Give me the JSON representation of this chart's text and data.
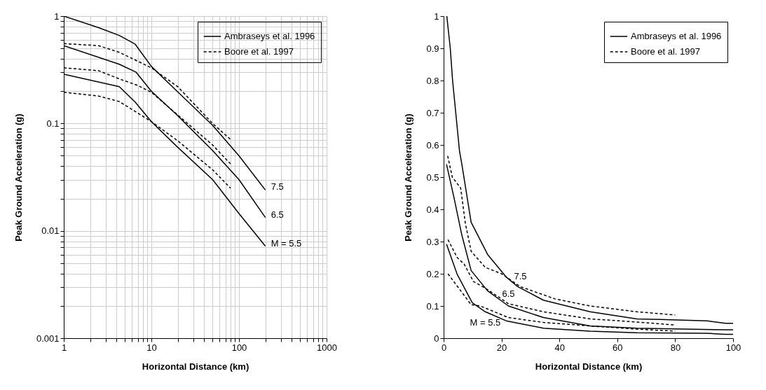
{
  "chart_data": [
    {
      "type": "line",
      "xlabel": "Horizontal Distance (km)",
      "ylabel": "Peak Ground Acceleration (g)",
      "log": "xy",
      "grid": true,
      "legend": "top right",
      "xlim": [
        1,
        1000
      ],
      "ylim": [
        0.001,
        1
      ],
      "xticks": [
        1,
        {
          "value": 2,
          "label": null
        },
        {
          "value": 3,
          "label": null
        },
        {
          "value": 4,
          "label": null
        },
        {
          "value": 5,
          "label": null
        },
        {
          "value": 6,
          "label": null
        },
        {
          "value": 7,
          "label": null
        },
        {
          "value": 8,
          "label": null
        },
        {
          "value": 9,
          "label": null
        },
        10,
        {
          "value": 20,
          "label": null
        },
        {
          "value": 30,
          "label": null
        },
        {
          "value": 40,
          "label": null
        },
        {
          "value": 50,
          "label": null
        },
        {
          "value": 60,
          "label": null
        },
        {
          "value": 70,
          "label": null
        },
        {
          "value": 80,
          "label": null
        },
        {
          "value": 90,
          "label": null
        },
        100,
        {
          "value": 200,
          "label": null
        },
        {
          "value": 300,
          "label": null
        },
        {
          "value": 400,
          "label": null
        },
        {
          "value": 500,
          "label": null
        },
        {
          "value": 600,
          "label": null
        },
        {
          "value": 700,
          "label": null
        },
        {
          "value": 800,
          "label": null
        },
        {
          "value": 900,
          "label": null
        },
        1000
      ],
      "yticks": [
        0.001,
        {
          "value": 0.002,
          "label": null
        },
        {
          "value": 0.003,
          "label": null
        },
        {
          "value": 0.004,
          "label": null
        },
        {
          "value": 0.005,
          "label": null
        },
        {
          "value": 0.006,
          "label": null
        },
        {
          "value": 0.007,
          "label": null
        },
        {
          "value": 0.008,
          "label": null
        },
        {
          "value": 0.009,
          "label": null
        },
        0.01,
        {
          "value": 0.02,
          "label": null
        },
        {
          "value": 0.03,
          "label": null
        },
        {
          "value": 0.04,
          "label": null
        },
        {
          "value": 0.05,
          "label": null
        },
        {
          "value": 0.06,
          "label": null
        },
        {
          "value": 0.07,
          "label": null
        },
        {
          "value": 0.08,
          "label": null
        },
        {
          "value": 0.09,
          "label": null
        },
        0.1,
        {
          "value": 0.2,
          "label": null
        },
        {
          "value": 0.3,
          "label": null
        },
        {
          "value": 0.4,
          "label": null
        },
        {
          "value": 0.5,
          "label": null
        },
        {
          "value": 0.6,
          "label": null
        },
        {
          "value": 0.7,
          "label": null
        },
        {
          "value": 0.8,
          "label": null
        },
        {
          "value": 0.9,
          "label": null
        },
        1
      ],
      "series": [
        {
          "name": "Ambraseys et al. 1996",
          "color": "#000000",
          "line_style": "solid",
          "x": [
            1,
            2.5,
            4.3,
            6.5,
            10,
            20,
            50,
            100,
            200
          ],
          "values": [
            1.0,
            0.78,
            0.66,
            0.55,
            0.34,
            0.197,
            0.096,
            0.05,
            0.024
          ]
        },
        {
          "color": "#000000",
          "line_style": "solid",
          "x": [
            1,
            4.3,
            6.7,
            10,
            20,
            50,
            100,
            200
          ],
          "values": [
            0.53,
            0.356,
            0.3,
            0.2,
            0.118,
            0.056,
            0.03,
            0.0133
          ]
        },
        {
          "color": "#000000",
          "line_style": "solid",
          "x": [
            1,
            4.3,
            6.5,
            10,
            20,
            50,
            100,
            200
          ],
          "values": [
            0.288,
            0.22,
            0.159,
            0.104,
            0.06,
            0.03,
            0.0145,
            0.0072
          ]
        },
        {
          "name": "Boore et al. 1997",
          "color": "#000000",
          "line_style": "dashed",
          "x": [
            1,
            2.5,
            4.3,
            7,
            10,
            20,
            50,
            80
          ],
          "values": [
            0.555,
            0.53,
            0.46,
            0.38,
            0.33,
            0.22,
            0.1,
            0.071
          ]
        },
        {
          "color": "#000000",
          "line_style": "dashed",
          "x": [
            1,
            2.5,
            4.3,
            7,
            10,
            20,
            50,
            80
          ],
          "values": [
            0.33,
            0.31,
            0.26,
            0.226,
            0.195,
            0.12,
            0.063,
            0.042
          ]
        },
        {
          "color": "#000000",
          "line_style": "dashed",
          "x": [
            1,
            2.5,
            4.3,
            7,
            10,
            20,
            50,
            80
          ],
          "values": [
            0.195,
            0.18,
            0.16,
            0.125,
            0.104,
            0.069,
            0.037,
            0.025
          ]
        }
      ],
      "annotations": [
        {
          "text": "7.5",
          "x": 200,
          "y": 0.024
        },
        {
          "text": "6.5",
          "x": 200,
          "y": 0.0133
        },
        {
          "text": "M = 5.5",
          "x": 200,
          "y": 0.0072
        }
      ]
    },
    {
      "type": "line",
      "xlabel": "Horizontal Distance (km)",
      "ylabel": "Peak Ground Acceleration (g)",
      "grid": false,
      "legend": "top right",
      "xlim": [
        0,
        100
      ],
      "ylim": [
        0,
        1
      ],
      "xticks": [
        0,
        20,
        40,
        60,
        80,
        100
      ],
      "yticks": [
        0,
        0.1,
        0.2,
        0.3,
        0.4,
        0.5,
        0.6,
        0.7,
        0.8,
        0.9,
        1
      ],
      "series": [
        {
          "name": "Ambraseys et al. 1996",
          "color": "#000000",
          "line_style": "solid",
          "x": [
            1.1,
            2.3,
            3.1,
            5.5,
            6.3,
            9.5,
            15.2,
            21.6,
            25.6,
            34.5,
            50.6,
            66.8,
            74.8,
            91,
            97.4,
            100
          ],
          "values": [
            1.0,
            0.9,
            0.8,
            0.58,
            0.54,
            0.36,
            0.26,
            0.19,
            0.16,
            0.118,
            0.082,
            0.06,
            0.058,
            0.054,
            0.046,
            0.046
          ]
        },
        {
          "color": "#000000",
          "line_style": "solid",
          "x": [
            1,
            3.5,
            6.3,
            9.5,
            15.2,
            22.4,
            34.5,
            50.6,
            66.8,
            97.4,
            100
          ],
          "values": [
            0.54,
            0.44,
            0.32,
            0.21,
            0.147,
            0.1,
            0.064,
            0.038,
            0.031,
            0.026,
            0.026
          ]
        },
        {
          "color": "#000000",
          "line_style": "solid",
          "x": [
            1,
            4.7,
            9.9,
            14.4,
            21.6,
            34.5,
            50.6,
            66.8,
            91,
            97.4,
            100
          ],
          "values": [
            0.292,
            0.198,
            0.11,
            0.082,
            0.054,
            0.031,
            0.022,
            0.017,
            0.015,
            0.012,
            0.012
          ]
        },
        {
          "name": "Boore et al. 1997",
          "color": "#000000",
          "line_style": "dashed",
          "x": [
            1.4,
            3,
            5.9,
            7.5,
            9.5,
            14.4,
            20,
            26.5,
            38.5,
            50.6,
            66.8,
            80
          ],
          "values": [
            0.566,
            0.5,
            0.466,
            0.357,
            0.27,
            0.22,
            0.2,
            0.16,
            0.122,
            0.1,
            0.082,
            0.072
          ]
        },
        {
          "color": "#000000",
          "line_style": "dashed",
          "x": [
            1.5,
            4.7,
            7.1,
            10.3,
            15.2,
            22.4,
            34.5,
            50.6,
            66.8,
            80
          ],
          "values": [
            0.306,
            0.25,
            0.23,
            0.176,
            0.151,
            0.107,
            0.082,
            0.06,
            0.05,
            0.041
          ]
        },
        {
          "color": "#000000",
          "line_style": "dashed",
          "x": [
            1.5,
            9.5,
            12.7,
            22.4,
            34.5,
            50.6,
            66.8,
            80
          ],
          "values": [
            0.2,
            0.104,
            0.1,
            0.064,
            0.049,
            0.038,
            0.028,
            0.022
          ]
        }
      ],
      "annotations": [
        {
          "text": "7.5",
          "x": 26.5,
          "y": 0.16
        },
        {
          "text": "6.5",
          "x": 22.4,
          "y": 0.107
        },
        {
          "text": "M = 5.5",
          "x": 14.4,
          "y": 0.082
        }
      ]
    }
  ]
}
